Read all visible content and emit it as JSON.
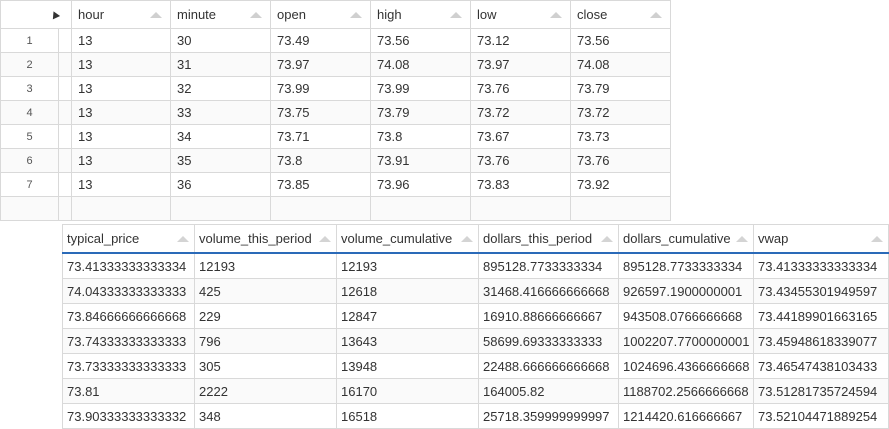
{
  "top_table": {
    "columns": [
      "hour",
      "minute",
      "open",
      "high",
      "low",
      "close"
    ],
    "rows": [
      {
        "index": "1",
        "cells": [
          "13",
          "30",
          "73.49",
          "73.56",
          "73.12",
          "73.56"
        ]
      },
      {
        "index": "2",
        "cells": [
          "13",
          "31",
          "73.97",
          "74.08",
          "73.97",
          "74.08"
        ]
      },
      {
        "index": "3",
        "cells": [
          "13",
          "32",
          "73.99",
          "73.99",
          "73.76",
          "73.79"
        ]
      },
      {
        "index": "4",
        "cells": [
          "13",
          "33",
          "73.75",
          "73.79",
          "73.72",
          "73.72"
        ]
      },
      {
        "index": "5",
        "cells": [
          "13",
          "34",
          "73.71",
          "73.8",
          "73.67",
          "73.73"
        ]
      },
      {
        "index": "6",
        "cells": [
          "13",
          "35",
          "73.8",
          "73.91",
          "73.76",
          "73.76"
        ]
      },
      {
        "index": "7",
        "cells": [
          "13",
          "36",
          "73.85",
          "73.96",
          "73.83",
          "73.92"
        ]
      }
    ]
  },
  "bottom_table": {
    "columns": [
      "typical_price",
      "volume_this_period",
      "volume_cumulative",
      "dollars_this_period",
      "dollars_cumulative",
      "vwap"
    ],
    "rows": [
      [
        "73.41333333333334",
        "12193",
        "12193",
        "895128.7733333334",
        "895128.7733333334",
        "73.41333333333334"
      ],
      [
        "74.04333333333333",
        "425",
        "12618",
        "31468.416666666668",
        "926597.1900000001",
        "73.43455301949597"
      ],
      [
        "73.84666666666668",
        "229",
        "12847",
        "16910.88666666667",
        "943508.0766666668",
        "73.44189901663165"
      ],
      [
        "73.74333333333333",
        "796",
        "13643",
        "58699.69333333333",
        "1002207.7700000001",
        "73.45948618339077"
      ],
      [
        "73.73333333333333",
        "305",
        "13948",
        "22488.666666666668",
        "1024696.4366666668",
        "73.46547438103433"
      ],
      [
        "73.81",
        "2222",
        "16170",
        "164005.82",
        "1188702.2566666668",
        "73.51281735724594"
      ],
      [
        "73.90333333333332",
        "348",
        "16518",
        "25718.359999999997",
        "1214420.616666667",
        "73.52104471889254"
      ]
    ]
  },
  "colors": {
    "header_underline": "#2a6ab8",
    "grid": "#d9d9d9",
    "sort_icon": "#d0d0d0"
  }
}
